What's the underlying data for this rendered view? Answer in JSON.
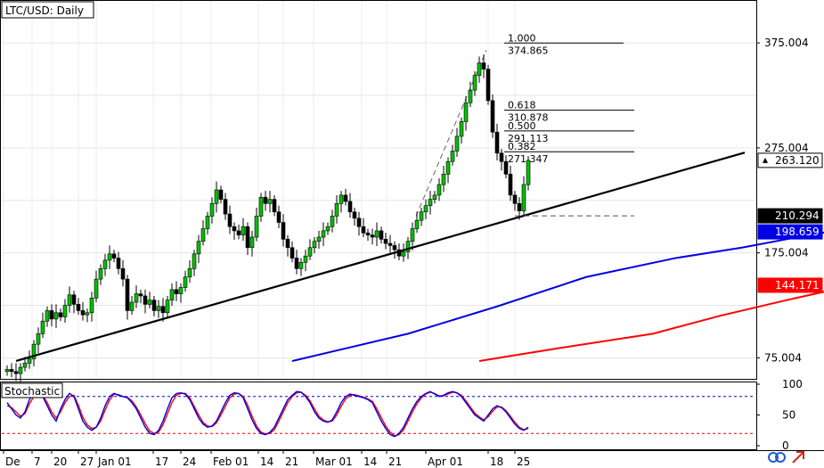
{
  "chart_data": {
    "type": "candlestick",
    "title": "LTC/USD: Daily",
    "price_axis": {
      "ticks": [
        "375.004",
        "275.004",
        "175.004",
        "75.004"
      ],
      "range": [
        55,
        415
      ]
    },
    "date_axis": {
      "ticks": [
        "De",
        "7",
        "20",
        "27",
        "Jan 01",
        "17",
        "24",
        "Feb 01",
        "14",
        "21",
        "Mar 01",
        "14",
        "21",
        "Apr 01",
        "18",
        "25"
      ]
    },
    "grid": true,
    "price_badges": [
      {
        "label": "263.120",
        "color": "#ffffff",
        "text_color": "#000000"
      },
      {
        "label": "210.294",
        "color": "#000000",
        "text_color": "#ffffff"
      },
      {
        "label": "198.659",
        "color": "#0000e6",
        "text_color": "#ffffff"
      },
      {
        "label": "144.171",
        "color": "#ff0000",
        "text_color": "#ffffff"
      }
    ],
    "fibonacci": [
      {
        "ratio": "1.000",
        "price": "374.865",
        "value": 374.865
      },
      {
        "ratio": "0.618",
        "price": "310.878",
        "value": 310.878
      },
      {
        "ratio": "0.500",
        "price": "291.113",
        "value": 291.113
      },
      {
        "ratio": "0.382",
        "price": "271.347",
        "value": 271.347
      }
    ],
    "support_level": 210.294,
    "trendline": {
      "from": [
        0,
        72
      ],
      "to": [
        180,
        268
      ]
    },
    "series": [
      {
        "name": "",
        "type": "moving_average",
        "color": "#0000e6",
        "x": [
          64,
          90,
          110,
          130,
          150,
          165,
          180,
          190
        ],
        "y": [
          72,
          98,
          124,
          152,
          170,
          180,
          192,
          198.659
        ]
      },
      {
        "name": "",
        "type": "moving_average",
        "color": "#ff0000",
        "x": [
          106,
          125,
          145,
          160,
          175,
          190
        ],
        "y": [
          72,
          85,
          98,
          115,
          130,
          144.171
        ]
      }
    ],
    "candles_close": [
      64,
      62,
      60,
      66,
      70,
      74,
      88,
      98,
      110,
      120,
      112,
      118,
      114,
      125,
      135,
      126,
      120,
      116,
      118,
      132,
      150,
      160,
      168,
      174,
      170,
      160,
      150,
      120,
      128,
      136,
      134,
      126,
      130,
      120,
      124,
      118,
      130,
      140,
      136,
      142,
      152,
      160,
      174,
      186,
      198,
      210,
      222,
      235,
      226,
      212,
      200,
      196,
      192,
      200,
      180,
      190,
      210,
      228,
      222,
      226,
      214,
      204,
      188,
      180,
      170,
      160,
      166,
      172,
      180,
      186,
      190,
      196,
      200,
      210,
      222,
      230,
      224,
      214,
      208,
      200,
      194,
      192,
      190,
      196,
      188,
      184,
      182,
      178,
      172,
      176,
      186,
      198,
      206,
      214,
      220,
      226,
      230,
      240,
      250,
      262,
      272,
      286,
      300,
      318,
      330,
      344,
      356,
      350,
      320,
      290,
      270,
      262,
      250,
      230,
      222,
      215,
      240,
      263.12
    ],
    "stochastic": {
      "label": "Stochastic",
      "ticks": [
        "100",
        "50",
        "0"
      ],
      "levels": [
        80,
        20
      ],
      "main_color": "#0000e6",
      "signal_color": "#ff0000",
      "main": [
        70,
        60,
        50,
        45,
        55,
        75,
        85,
        88,
        80,
        65,
        50,
        40,
        60,
        75,
        85,
        80,
        60,
        40,
        30,
        25,
        30,
        45,
        65,
        80,
        85,
        82,
        80,
        78,
        70,
        60,
        45,
        30,
        20,
        18,
        25,
        40,
        60,
        78,
        85,
        86,
        84,
        75,
        60,
        45,
        35,
        30,
        32,
        40,
        55,
        70,
        82,
        86,
        85,
        78,
        60,
        42,
        28,
        20,
        18,
        22,
        30,
        45,
        60,
        75,
        82,
        88,
        87,
        80,
        70,
        55,
        45,
        40,
        38,
        42,
        55,
        70,
        80,
        84,
        82,
        80,
        78,
        75,
        70,
        55,
        40,
        28,
        18,
        15,
        20,
        30,
        45,
        60,
        72,
        80,
        85,
        88,
        84,
        80,
        82,
        86,
        88,
        86,
        80,
        70,
        60,
        50,
        45,
        40,
        50,
        60,
        65,
        62,
        55,
        45,
        35,
        28,
        25,
        30
      ],
      "signal": [
        65,
        62,
        55,
        48,
        52,
        68,
        80,
        86,
        82,
        70,
        55,
        45,
        55,
        70,
        80,
        82,
        66,
        46,
        34,
        28,
        30,
        40,
        58,
        74,
        84,
        83,
        80,
        79,
        73,
        63,
        50,
        36,
        24,
        20,
        22,
        34,
        52,
        70,
        82,
        85,
        85,
        78,
        64,
        50,
        38,
        32,
        31,
        37,
        50,
        64,
        78,
        84,
        85,
        80,
        66,
        48,
        32,
        22,
        19,
        20,
        26,
        40,
        55,
        70,
        80,
        86,
        87,
        82,
        73,
        60,
        48,
        42,
        39,
        40,
        50,
        64,
        76,
        82,
        83,
        81,
        79,
        76,
        72,
        60,
        46,
        32,
        22,
        16,
        18,
        26,
        40,
        55,
        68,
        78,
        84,
        87,
        85,
        81,
        81,
        84,
        87,
        86,
        82,
        73,
        63,
        53,
        47,
        42,
        47,
        56,
        63,
        63,
        57,
        48,
        38,
        30,
        26,
        28
      ]
    }
  }
}
